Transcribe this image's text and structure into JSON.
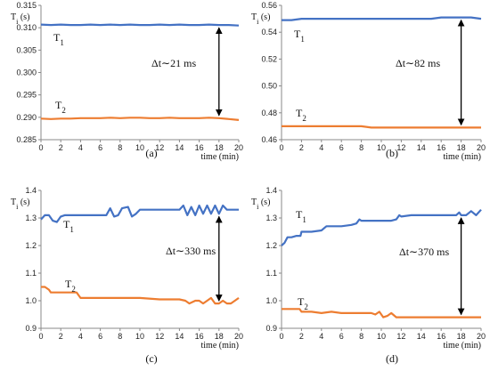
{
  "chart_data": [
    {
      "type": "line",
      "ylabel": "T",
      "ylabel_sub": "i",
      "ylabel_unit": "(s)",
      "xlabel": "time (min)",
      "caption": "(a)",
      "xlim": [
        0,
        20
      ],
      "ylim": [
        0.285,
        0.315
      ],
      "xticks": [
        "0",
        "2",
        "4",
        "6",
        "8",
        "10",
        "12",
        "14",
        "16",
        "18",
        "20"
      ],
      "yticks": [
        "0.285",
        "0.290",
        "0.295",
        "0.300",
        "0.305",
        "0.310",
        "0.315"
      ],
      "annotation": "Δt∼21 ms",
      "arrow_at_x": 18,
      "series": [
        {
          "name": "T",
          "name_sub": "1",
          "color": "#4472c4",
          "x": [
            0,
            1,
            2,
            3,
            4,
            5,
            6,
            7,
            8,
            9,
            10,
            11,
            12,
            13,
            14,
            15,
            16,
            17,
            18,
            19,
            20
          ],
          "y": [
            0.3107,
            0.3106,
            0.3107,
            0.3106,
            0.3106,
            0.3107,
            0.3106,
            0.3107,
            0.3106,
            0.3107,
            0.3106,
            0.3106,
            0.3107,
            0.3106,
            0.3107,
            0.3106,
            0.3106,
            0.3107,
            0.3106,
            0.3106,
            0.3105
          ]
        },
        {
          "name": "T",
          "name_sub": "2",
          "color": "#ed7d31",
          "x": [
            0,
            1,
            2,
            3,
            4,
            5,
            6,
            7,
            8,
            9,
            10,
            11,
            12,
            13,
            14,
            15,
            16,
            17,
            18,
            19,
            20
          ],
          "y": [
            0.2897,
            0.2896,
            0.2897,
            0.2897,
            0.2898,
            0.2898,
            0.2898,
            0.2899,
            0.2898,
            0.2899,
            0.2899,
            0.2898,
            0.2898,
            0.2899,
            0.2898,
            0.2898,
            0.2898,
            0.2899,
            0.2898,
            0.2896,
            0.2894
          ]
        }
      ]
    },
    {
      "type": "line",
      "ylabel": "T",
      "ylabel_sub": "i",
      "ylabel_unit": "(s)",
      "xlabel": "time (min)",
      "caption": "(b)",
      "xlim": [
        0,
        20
      ],
      "ylim": [
        0.46,
        0.56
      ],
      "xticks": [
        "0",
        "2",
        "4",
        "6",
        "8",
        "10",
        "12",
        "14",
        "16",
        "18",
        "20"
      ],
      "yticks": [
        "0.46",
        "0.48",
        "0.50",
        "0.52",
        "0.54",
        "0.56"
      ],
      "annotation": "Δt∼82 ms",
      "arrow_at_x": 18,
      "series": [
        {
          "name": "T",
          "name_sub": "1",
          "color": "#4472c4",
          "x": [
            0,
            1,
            2,
            3,
            4,
            5,
            6,
            7,
            8,
            9,
            10,
            11,
            12,
            13,
            14,
            15,
            16,
            17,
            18,
            19,
            20
          ],
          "y": [
            0.549,
            0.549,
            0.55,
            0.55,
            0.55,
            0.55,
            0.55,
            0.55,
            0.55,
            0.55,
            0.55,
            0.55,
            0.55,
            0.55,
            0.55,
            0.55,
            0.551,
            0.551,
            0.551,
            0.551,
            0.55
          ]
        },
        {
          "name": "T",
          "name_sub": "2",
          "color": "#ed7d31",
          "x": [
            0,
            1,
            2,
            3,
            4,
            5,
            6,
            7,
            8,
            9,
            10,
            11,
            12,
            13,
            14,
            15,
            16,
            17,
            18,
            19,
            20
          ],
          "y": [
            0.47,
            0.47,
            0.47,
            0.47,
            0.47,
            0.47,
            0.47,
            0.47,
            0.47,
            0.469,
            0.469,
            0.469,
            0.469,
            0.469,
            0.469,
            0.469,
            0.469,
            0.469,
            0.469,
            0.469,
            0.469
          ]
        }
      ]
    },
    {
      "type": "line",
      "ylabel": "T",
      "ylabel_sub": "i",
      "ylabel_unit": "(s)",
      "xlabel": "time (min)",
      "caption": "(c)",
      "xlim": [
        0,
        20
      ],
      "ylim": [
        0.9,
        1.4
      ],
      "xticks": [
        "0",
        "2",
        "4",
        "6",
        "8",
        "10",
        "12",
        "14",
        "16",
        "18",
        "20"
      ],
      "yticks": [
        "0.9",
        "1.0",
        "1.1",
        "1.2",
        "1.3",
        "1.4"
      ],
      "annotation": "Δt∼330 ms",
      "arrow_at_x": 18,
      "series": [
        {
          "name": "T",
          "name_sub": "1",
          "color": "#4472c4",
          "x": [
            0,
            0.4,
            0.8,
            1.2,
            1.6,
            2,
            2.4,
            3,
            4,
            5,
            6,
            6.6,
            7,
            7.4,
            7.8,
            8.2,
            8.8,
            9.2,
            9.6,
            10,
            10.6,
            11,
            12,
            13,
            14,
            14.4,
            14.8,
            15.2,
            15.6,
            16,
            16.4,
            16.8,
            17.2,
            17.6,
            18,
            18.4,
            18.8,
            19.2,
            20
          ],
          "y": [
            1.295,
            1.31,
            1.31,
            1.29,
            1.285,
            1.305,
            1.31,
            1.31,
            1.31,
            1.31,
            1.31,
            1.31,
            1.335,
            1.305,
            1.31,
            1.335,
            1.34,
            1.305,
            1.315,
            1.33,
            1.33,
            1.33,
            1.33,
            1.33,
            1.33,
            1.345,
            1.31,
            1.34,
            1.31,
            1.345,
            1.315,
            1.345,
            1.315,
            1.345,
            1.315,
            1.345,
            1.33,
            1.33,
            1.33
          ]
        },
        {
          "name": "T",
          "name_sub": "2",
          "color": "#ed7d31",
          "x": [
            0,
            0.4,
            0.8,
            1,
            1.5,
            2,
            3,
            3.6,
            4,
            4.2,
            5,
            6,
            8,
            10,
            12,
            14,
            14.6,
            15,
            15.6,
            16,
            16.4,
            16.8,
            17.2,
            17.6,
            18,
            18.4,
            18.8,
            19.2,
            19.6,
            20
          ],
          "y": [
            1.05,
            1.05,
            1.04,
            1.03,
            1.03,
            1.03,
            1.03,
            1.03,
            1.01,
            1.01,
            1.01,
            1.01,
            1.01,
            1.01,
            1.005,
            1.005,
            1.0,
            0.99,
            1.0,
            1.0,
            0.99,
            1.0,
            1.01,
            0.99,
            0.99,
            1.0,
            0.99,
            0.99,
            1.0,
            1.01
          ]
        }
      ]
    },
    {
      "type": "line",
      "ylabel": "T",
      "ylabel_sub": "i",
      "ylabel_unit": "(s)",
      "xlabel": "time (min)",
      "caption": "(d)",
      "xlim": [
        0,
        20
      ],
      "ylim": [
        0.9,
        1.4
      ],
      "xticks": [
        "0",
        "2",
        "4",
        "6",
        "8",
        "10",
        "12",
        "14",
        "16",
        "18",
        "20"
      ],
      "yticks": [
        "0.9",
        "1.0",
        "1.1",
        "1.2",
        "1.3",
        "1.4"
      ],
      "annotation": "Δt∼370 ms",
      "arrow_at_x": 18,
      "series": [
        {
          "name": "T",
          "name_sub": "1",
          "color": "#4472c4",
          "x": [
            0,
            0.3,
            0.6,
            1,
            1.5,
            1.9,
            2,
            2.5,
            3,
            4,
            4.5,
            5,
            6,
            7,
            7.5,
            7.8,
            8,
            9,
            10,
            11,
            11.5,
            11.8,
            12,
            13,
            14,
            15,
            16,
            17,
            17.5,
            17.8,
            18,
            18.5,
            19,
            19.5,
            20
          ],
          "y": [
            1.2,
            1.21,
            1.23,
            1.23,
            1.235,
            1.235,
            1.25,
            1.25,
            1.25,
            1.255,
            1.27,
            1.27,
            1.27,
            1.275,
            1.28,
            1.295,
            1.29,
            1.29,
            1.29,
            1.29,
            1.295,
            1.31,
            1.305,
            1.31,
            1.31,
            1.31,
            1.31,
            1.31,
            1.31,
            1.32,
            1.31,
            1.31,
            1.325,
            1.31,
            1.33
          ]
        },
        {
          "name": "T",
          "name_sub": "2",
          "color": "#ed7d31",
          "x": [
            0,
            1,
            1.8,
            2,
            2.4,
            3,
            4,
            5,
            6,
            7,
            8,
            9,
            9.4,
            9.8,
            10.2,
            10.6,
            11,
            11.5,
            12,
            13,
            14,
            15,
            16,
            17,
            18,
            19,
            20
          ],
          "y": [
            0.97,
            0.97,
            0.97,
            0.96,
            0.96,
            0.96,
            0.955,
            0.96,
            0.955,
            0.955,
            0.955,
            0.955,
            0.95,
            0.96,
            0.94,
            0.945,
            0.955,
            0.94,
            0.94,
            0.94,
            0.94,
            0.94,
            0.94,
            0.94,
            0.94,
            0.94,
            0.94
          ]
        }
      ]
    }
  ]
}
